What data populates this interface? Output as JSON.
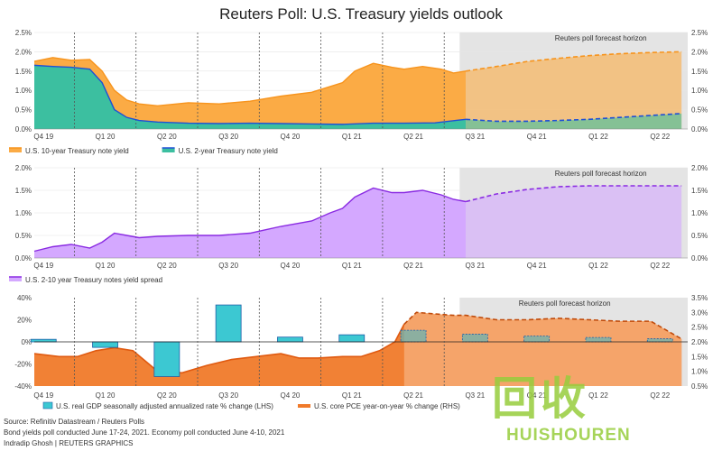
{
  "title": "Reuters Poll: U.S. Treasury yields outlook",
  "colors": {
    "ten_year": "#f7941d",
    "ten_year_fill": "#fbab45",
    "two_year": "#1f4fd6",
    "two_year_fill": "#3cbfa0",
    "spread": "#8a2be2",
    "spread_fill": "#d4a8ff",
    "bar": "#3cc8d2",
    "pce": "#f07a2a",
    "forecast_bg": "#e4e4e4"
  },
  "chart_data": [
    {
      "type": "area",
      "forecast_label": "Reuters poll forecast horizon",
      "x_labels": [
        "Q4 19",
        "Q1 20",
        "Q2 20",
        "Q3 20",
        "Q4 20",
        "Q1 21",
        "Q2 21",
        "Q3 21",
        "Q4 21",
        "Q1 22",
        "Q2 22"
      ],
      "ylim": [
        0,
        2.5
      ],
      "yticks_left": [
        "0.0%",
        "0.5%",
        "1.0%",
        "1.5%",
        "2.0%",
        "2.5%"
      ],
      "yticks_right": [
        "0.0%",
        "0.5%",
        "1.0%",
        "1.5%",
        "2.0%",
        "2.5%"
      ],
      "legend": [
        "U.S. 10-year Treasury note yield",
        "U.S. 2-year Treasury note yield"
      ],
      "series": [
        {
          "name": "U.S. 10-year Treasury note yield",
          "x": [
            0,
            0.3,
            0.6,
            0.9,
            1.1,
            1.3,
            1.5,
            1.7,
            2,
            2.5,
            3,
            3.5,
            4,
            4.5,
            4.8,
            5,
            5.2,
            5.5,
            5.8,
            6,
            6.3,
            6.6,
            6.8,
            7
          ],
          "y": [
            1.75,
            1.85,
            1.78,
            1.8,
            1.5,
            1.0,
            0.75,
            0.65,
            0.6,
            0.68,
            0.65,
            0.72,
            0.85,
            0.95,
            1.1,
            1.2,
            1.5,
            1.7,
            1.6,
            1.55,
            1.62,
            1.55,
            1.45,
            1.5
          ]
        },
        {
          "name": "U.S. 2-year Treasury note yield",
          "x": [
            0,
            0.3,
            0.6,
            0.9,
            1.1,
            1.3,
            1.5,
            1.7,
            2,
            2.5,
            3,
            3.5,
            4,
            4.5,
            5,
            5.5,
            6,
            6.5,
            7
          ],
          "y": [
            1.65,
            1.62,
            1.6,
            1.55,
            1.2,
            0.5,
            0.3,
            0.22,
            0.18,
            0.15,
            0.14,
            0.15,
            0.14,
            0.13,
            0.12,
            0.15,
            0.15,
            0.16,
            0.25
          ]
        }
      ],
      "forecast": [
        {
          "name": "U.S. 10-year Treasury note yield",
          "x": [
            7,
            7.5,
            8,
            8.5,
            9,
            9.5,
            10,
            10.5
          ],
          "y": [
            1.5,
            1.62,
            1.75,
            1.83,
            1.9,
            1.95,
            1.98,
            2.0
          ]
        },
        {
          "name": "U.S. 2-year Treasury note yield",
          "x": [
            7,
            7.5,
            8,
            8.5,
            9,
            9.5,
            10,
            10.5
          ],
          "y": [
            0.25,
            0.2,
            0.2,
            0.22,
            0.25,
            0.3,
            0.35,
            0.4
          ]
        }
      ]
    },
    {
      "type": "area",
      "forecast_label": "Reuters poll forecast horizon",
      "x_labels": [
        "Q4 19",
        "Q1 20",
        "Q2 20",
        "Q3 20",
        "Q4 20",
        "Q1 21",
        "Q2 21",
        "Q3 21",
        "Q4 21",
        "Q1 22",
        "Q2 22"
      ],
      "ylim": [
        0,
        2.0
      ],
      "yticks_left": [
        "0.0%",
        "0.5%",
        "1.0%",
        "1.5%",
        "2.0%"
      ],
      "yticks_right": [
        "0.0%",
        "0.5%",
        "1.0%",
        "1.5%",
        "2.0%"
      ],
      "legend": [
        "U.S. 2-10 year Treasury notes yield spread"
      ],
      "series": [
        {
          "name": "U.S. 2-10 year Treasury notes yield spread",
          "x": [
            0,
            0.3,
            0.6,
            0.9,
            1.1,
            1.3,
            1.5,
            1.7,
            2,
            2.5,
            3,
            3.5,
            4,
            4.5,
            4.8,
            5,
            5.2,
            5.5,
            5.8,
            6,
            6.3,
            6.6,
            6.8,
            7
          ],
          "y": [
            0.15,
            0.25,
            0.3,
            0.22,
            0.35,
            0.55,
            0.5,
            0.45,
            0.48,
            0.5,
            0.5,
            0.55,
            0.7,
            0.82,
            1.0,
            1.1,
            1.35,
            1.55,
            1.45,
            1.45,
            1.5,
            1.4,
            1.3,
            1.25
          ]
        }
      ],
      "forecast": [
        {
          "name": "U.S. 2-10 year Treasury notes yield spread",
          "x": [
            7,
            7.5,
            8,
            8.5,
            9,
            9.5,
            10,
            10.5
          ],
          "y": [
            1.25,
            1.42,
            1.52,
            1.58,
            1.6,
            1.6,
            1.6,
            1.6
          ]
        }
      ]
    },
    {
      "type": "bar",
      "forecast_label": "Reuters poll forecast horizon",
      "categories": [
        "Q4 19",
        "Q1 20",
        "Q2 20",
        "Q3 20",
        "Q4 20",
        "Q1 21",
        "Q2 21",
        "Q3 21",
        "Q4 21",
        "Q1 22",
        "Q2 22"
      ],
      "ylim_left": [
        -40,
        40
      ],
      "ylim_right": [
        0.5,
        3.5
      ],
      "yticks_left": [
        "-40%",
        "-20%",
        "0%",
        "20%",
        "40%"
      ],
      "yticks_right": [
        "0.5%",
        "1.0%",
        "1.5%",
        "2.0%",
        "2.5%",
        "3.0%",
        "3.5%"
      ],
      "legend": [
        "U.S. real GDP seasonally adjusted annualized rate % change (LHS)",
        "U.S. core PCE year-on-year % change (RHS)"
      ],
      "bars": [
        2.3,
        -5.0,
        -31.4,
        33.4,
        4.3,
        6.4,
        10.5,
        7.0,
        5.3,
        4.0,
        2.8
      ],
      "forecast_bars_from": 6,
      "line": {
        "x": [
          0,
          0.4,
          0.7,
          1,
          1.3,
          1.6,
          2,
          2.4,
          2.8,
          3.2,
          3.6,
          4,
          4.3,
          4.6,
          5,
          5.3,
          5.6,
          5.85,
          6,
          6.2,
          6.5,
          6.8,
          7,
          7.5,
          8,
          8.5,
          9,
          9.5,
          10,
          10.5
        ],
        "y": [
          1.6,
          1.5,
          1.5,
          1.7,
          1.8,
          1.7,
          1.0,
          0.95,
          1.2,
          1.4,
          1.5,
          1.6,
          1.45,
          1.45,
          1.5,
          1.5,
          1.7,
          2.0,
          2.6,
          3.0,
          2.95,
          2.9,
          2.9,
          2.75,
          2.75,
          2.8,
          2.75,
          2.7,
          2.7,
          2.1
        ]
      },
      "line_forecast_from": 6
    }
  ],
  "footer": {
    "source": "Source: Refinitiv Datastream / Reuters Polls",
    "dates": "Bond yields poll conducted June 17-24, 2021. Economy poll conducted June 4-10, 2021",
    "credit": "Indradip Ghosh | REUTERS GRAPHICS"
  },
  "watermark": {
    "cn": "回收",
    "en": "HUISHOUREN"
  }
}
